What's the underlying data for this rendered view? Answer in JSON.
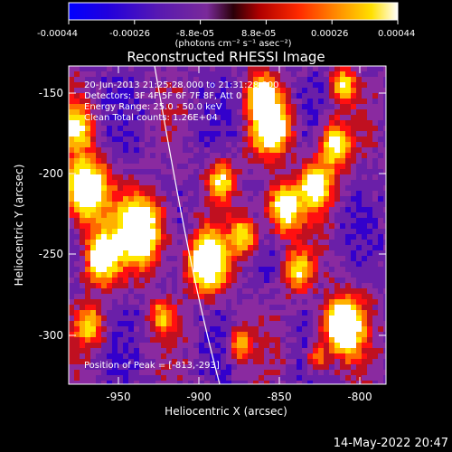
{
  "colorbar": {
    "ticks": [
      "-0.00044",
      "-0.00026",
      "-8.8e-05",
      "8.8e-05",
      "0.00026",
      "0.00044"
    ],
    "units": "(photons cm⁻² s⁻¹ asec⁻²)",
    "colormap": [
      "#0000ff",
      "#3300cc",
      "#6a1fa8",
      "#8a2aa0",
      "#c01020",
      "#ff1010",
      "#ff6a00",
      "#ffb000",
      "#ffe600",
      "#ffffff"
    ]
  },
  "plot": {
    "title": "Reconstructed RHESSI Image",
    "xlabel": "Heliocentric X (arcsec)",
    "ylabel": "Heliocentric Y (arcsec)",
    "xticks": [
      "-950",
      "-900",
      "-850",
      "-800"
    ],
    "yticks": [
      "-150",
      "-200",
      "-250",
      "-300"
    ],
    "info_lines": [
      "20-Jun-2013 21:25:28.000 to 21:31:28.000",
      "Detectors: 3F 4F 5F 6F 7F 8F, Att 0",
      "Energy Range: 25.0 - 50.0 keV",
      "Clean     Total counts: 1.26E+04"
    ],
    "peak_label": "Position of Peak = [-813,-293]"
  },
  "footer": {
    "timestamp": "14-May-2022 20:47"
  }
}
